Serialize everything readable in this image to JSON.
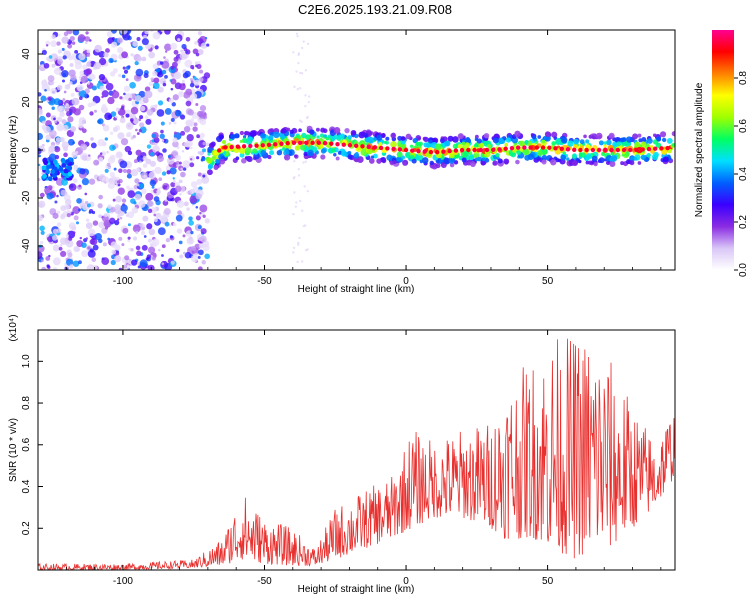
{
  "title": "C2E6.2025.193.21.09.R08",
  "colors": {
    "snr_line": "#e8312f",
    "spectrum_scatter": "#7a1fe0",
    "frame": "#000000"
  },
  "colorbar": {
    "label": "Normalized spectral amplitude",
    "range": [
      0.0,
      1.0
    ],
    "tick_labels": [
      "0.0",
      "0.2",
      "0.4",
      "0.6",
      "0.8"
    ],
    "tick_values": [
      0.0,
      0.2,
      0.4,
      0.6,
      0.8
    ],
    "colormap": [
      "#ffffff",
      "#d9c6f7",
      "#8a2be2",
      "#3a00ff",
      "#0060ff",
      "#00e0ff",
      "#00ff60",
      "#a0ff00",
      "#ffff00",
      "#ff8000",
      "#ff0000",
      "#ff0090"
    ]
  },
  "chart_data": [
    {
      "type": "heatmap",
      "title": "C2E6.2025.193.21.09.R08",
      "xlabel": "Height of straight line (km)",
      "ylabel": "Frequency (Hz)",
      "xlim": [
        -130,
        95
      ],
      "ylim": [
        -50,
        50
      ],
      "x_tick_labels": [
        "-100",
        "-50",
        "0",
        "50"
      ],
      "x_tick_values": [
        -100,
        -50,
        0,
        50
      ],
      "y_tick_labels": [
        "-40",
        "-20",
        "0",
        "20",
        "40"
      ],
      "y_tick_values": [
        -40,
        -20,
        0,
        20,
        40
      ],
      "regions": [
        {
          "x_range": [
            -130,
            -70
          ],
          "description_level": 0.25,
          "freq_spread": [
            -50,
            50
          ]
        },
        {
          "x_range": [
            -70,
            95
          ],
          "description_level": 0.8,
          "freq_center": [
            [
              -70,
              -5
            ],
            [
              -65,
              1
            ],
            [
              -50,
              2
            ],
            [
              -40,
              3
            ],
            [
              -30,
              3
            ],
            [
              -20,
              2
            ],
            [
              -10,
              1
            ],
            [
              0,
              0
            ],
            [
              10,
              -1
            ],
            [
              20,
              0
            ],
            [
              30,
              0
            ],
            [
              40,
              1
            ],
            [
              50,
              1
            ],
            [
              60,
              0
            ],
            [
              70,
              0
            ],
            [
              80,
              0
            ],
            [
              95,
              1
            ]
          ]
        }
      ]
    },
    {
      "type": "line",
      "xlabel": "Height of straight line (km)",
      "ylabel": "SNR (10 * v/v)",
      "y_scale_label": "(x10⁴)",
      "xlim": [
        -130,
        95
      ],
      "ylim": [
        0,
        1.15
      ],
      "x_tick_labels": [
        "-100",
        "-50",
        "0",
        "50"
      ],
      "x_tick_values": [
        -100,
        -50,
        0,
        50
      ],
      "y_tick_labels": [
        "0.2",
        "0.4",
        "0.6",
        "0.8",
        "1.0"
      ],
      "y_tick_values": [
        0.2,
        0.4,
        0.6,
        0.8,
        1.0
      ],
      "series": [
        {
          "envelope": [
            {
              "x": -130,
              "min": 0.0,
              "max": 0.03
            },
            {
              "x": -100,
              "min": 0.0,
              "max": 0.03
            },
            {
              "x": -75,
              "min": 0.01,
              "max": 0.05
            },
            {
              "x": -65,
              "min": 0.02,
              "max": 0.15
            },
            {
              "x": -58,
              "min": 0.05,
              "max": 0.38
            },
            {
              "x": -50,
              "min": 0.03,
              "max": 0.25
            },
            {
              "x": -40,
              "min": 0.02,
              "max": 0.2
            },
            {
              "x": -32,
              "min": 0.02,
              "max": 0.1
            },
            {
              "x": -25,
              "min": 0.05,
              "max": 0.3
            },
            {
              "x": -15,
              "min": 0.1,
              "max": 0.38
            },
            {
              "x": -5,
              "min": 0.15,
              "max": 0.45
            },
            {
              "x": 2,
              "min": 0.2,
              "max": 0.68
            },
            {
              "x": 10,
              "min": 0.25,
              "max": 0.62
            },
            {
              "x": 20,
              "min": 0.25,
              "max": 0.68
            },
            {
              "x": 30,
              "min": 0.2,
              "max": 0.72
            },
            {
              "x": 35,
              "min": 0.15,
              "max": 0.9
            },
            {
              "x": 45,
              "min": 0.15,
              "max": 1.02
            },
            {
              "x": 52,
              "min": 0.1,
              "max": 1.13
            },
            {
              "x": 60,
              "min": 0.05,
              "max": 1.13
            },
            {
              "x": 66,
              "min": 0.1,
              "max": 1.15
            },
            {
              "x": 72,
              "min": 0.1,
              "max": 1.02
            },
            {
              "x": 80,
              "min": 0.2,
              "max": 0.8
            },
            {
              "x": 88,
              "min": 0.3,
              "max": 0.62
            },
            {
              "x": 95,
              "min": 0.45,
              "max": 0.8
            }
          ]
        }
      ]
    }
  ]
}
